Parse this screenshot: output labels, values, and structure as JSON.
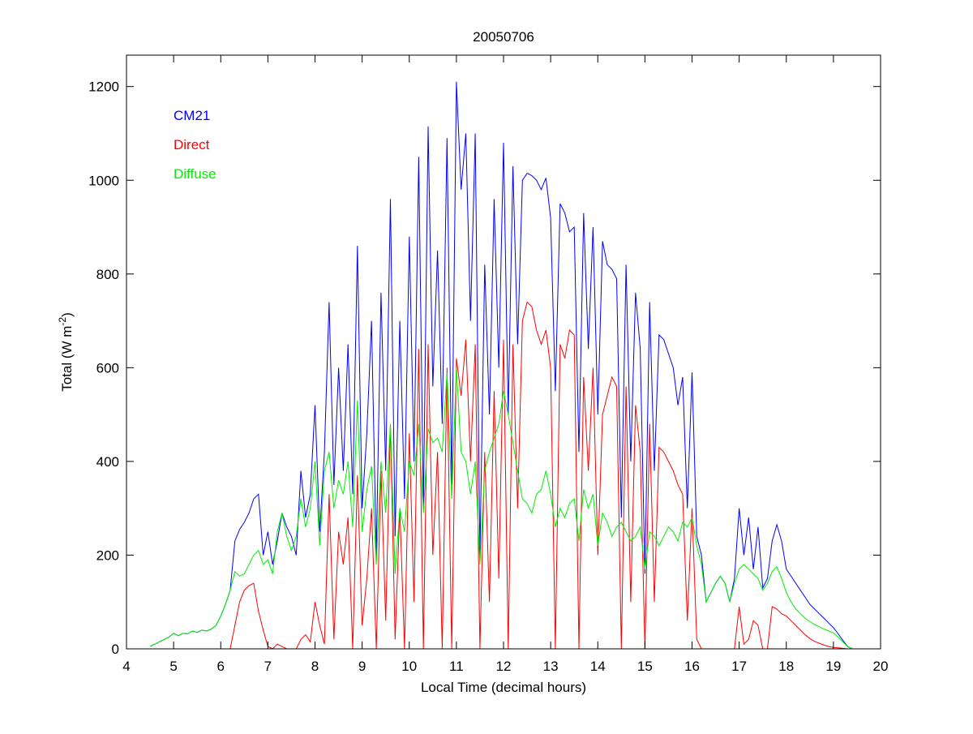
{
  "chart_data": {
    "type": "line",
    "title": "20050706",
    "xlabel": "Local Time (decimal hours)",
    "ylabel": {
      "main": "Total (W m",
      "sup": "-2",
      "end": ")"
    },
    "xlim": [
      4,
      20
    ],
    "ylim": [
      0,
      1267
    ],
    "xticks": [
      4,
      5,
      6,
      7,
      8,
      9,
      10,
      11,
      12,
      13,
      14,
      15,
      16,
      17,
      18,
      19,
      20
    ],
    "yticks": [
      0,
      200,
      400,
      600,
      800,
      1000,
      1200
    ],
    "grid": false,
    "legend_placement": "top-left",
    "x_start": 4.5,
    "x_step": 0.1,
    "series": [
      {
        "name": "CM21",
        "color": "#0000ff",
        "values": [
          5,
          10,
          15,
          20,
          25,
          33,
          28,
          33,
          32,
          38,
          35,
          40,
          38,
          42,
          50,
          70,
          95,
          125,
          230,
          255,
          270,
          290,
          320,
          330,
          200,
          250,
          180,
          230,
          290,
          260,
          240,
          200,
          380,
          280,
          330,
          520,
          250,
          420,
          740,
          350,
          600,
          380,
          650,
          330,
          860,
          300,
          460,
          700,
          200,
          760,
          380,
          960,
          240,
          700,
          320,
          880,
          400,
          1050,
          300,
          1115,
          560,
          850,
          480,
          1090,
          350,
          1210,
          980,
          1100,
          700,
          1100,
          200,
          820,
          500,
          960,
          600,
          1080,
          500,
          1030,
          650,
          1000,
          1015,
          1010,
          1000,
          980,
          1005,
          920,
          550,
          950,
          930,
          890,
          900,
          420,
          930,
          640,
          900,
          500,
          870,
          820,
          810,
          790,
          280,
          820,
          400,
          760,
          640,
          160,
          740,
          380,
          670,
          660,
          630,
          600,
          520,
          580,
          300,
          590,
          240,
          200,
          100,
          120,
          140,
          155,
          140,
          100,
          150,
          300,
          200,
          280,
          170,
          260,
          130,
          150,
          230,
          265,
          230,
          170,
          155,
          140,
          125,
          110,
          95,
          85,
          75,
          65,
          55,
          45,
          32,
          18,
          5,
          0
        ]
      },
      {
        "name": "Direct",
        "color": "#ff0000",
        "values": [
          0,
          0,
          0,
          0,
          0,
          0,
          0,
          0,
          0,
          0,
          0,
          0,
          0,
          0,
          0,
          0,
          0,
          0,
          50,
          100,
          125,
          135,
          140,
          80,
          40,
          5,
          0,
          10,
          5,
          0,
          0,
          0,
          20,
          30,
          15,
          100,
          50,
          10,
          330,
          20,
          250,
          180,
          280,
          0,
          370,
          50,
          150,
          300,
          0,
          380,
          60,
          480,
          20,
          300,
          0,
          460,
          100,
          640,
          0,
          650,
          200,
          420,
          0,
          600,
          0,
          620,
          540,
          660,
          400,
          650,
          0,
          420,
          100,
          550,
          150,
          660,
          0,
          650,
          300,
          700,
          740,
          730,
          680,
          650,
          680,
          600,
          0,
          650,
          620,
          680,
          670,
          0,
          580,
          380,
          600,
          200,
          500,
          540,
          580,
          560,
          0,
          560,
          100,
          520,
          420,
          0,
          480,
          100,
          430,
          420,
          400,
          380,
          350,
          330,
          60,
          300,
          20,
          0,
          0,
          0,
          0,
          0,
          0,
          0,
          0,
          90,
          10,
          20,
          60,
          50,
          0,
          0,
          90,
          85,
          75,
          70,
          60,
          50,
          40,
          30,
          22,
          16,
          12,
          8,
          5,
          3,
          2,
          1,
          0,
          0
        ]
      },
      {
        "name": "Diffuse",
        "color": "#00ee00",
        "values": [
          5,
          10,
          15,
          20,
          25,
          33,
          28,
          33,
          32,
          38,
          35,
          40,
          38,
          42,
          50,
          70,
          95,
          125,
          165,
          155,
          160,
          180,
          200,
          210,
          180,
          190,
          160,
          250,
          290,
          240,
          210,
          240,
          320,
          260,
          300,
          400,
          220,
          380,
          420,
          300,
          360,
          330,
          400,
          260,
          530,
          250,
          340,
          390,
          180,
          400,
          290,
          480,
          160,
          300,
          250,
          400,
          370,
          480,
          290,
          470,
          440,
          450,
          420,
          590,
          320,
          600,
          420,
          400,
          330,
          400,
          180,
          380,
          420,
          450,
          480,
          550,
          500,
          440,
          380,
          320,
          310,
          290,
          330,
          340,
          380,
          330,
          260,
          300,
          280,
          310,
          320,
          230,
          340,
          300,
          330,
          220,
          290,
          270,
          240,
          260,
          270,
          250,
          230,
          240,
          260,
          170,
          250,
          240,
          220,
          240,
          260,
          250,
          230,
          270,
          260,
          280,
          220,
          180,
          100,
          120,
          140,
          155,
          140,
          100,
          140,
          170,
          180,
          170,
          160,
          150,
          125,
          140,
          165,
          175,
          150,
          120,
          100,
          85,
          75,
          65,
          58,
          52,
          47,
          42,
          38,
          34,
          25,
          15,
          5,
          0
        ]
      }
    ]
  }
}
